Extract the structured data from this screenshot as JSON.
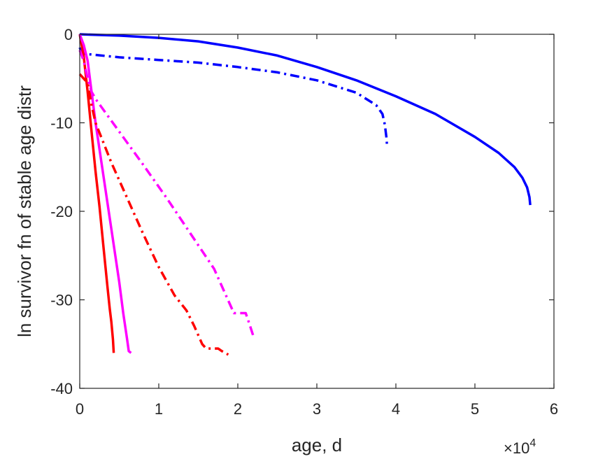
{
  "chart_data": {
    "type": "line",
    "xlabel": "age, d",
    "ylabel": "ln survivor fn of stable age distr",
    "x_multiplier_label": {
      "base": "×10",
      "exponent": "4"
    },
    "xlim": [
      0,
      6
    ],
    "ylim": [
      -40,
      0
    ],
    "xticks": [
      "0",
      "1",
      "2",
      "3",
      "4",
      "5",
      "6"
    ],
    "yticks": [
      "0",
      "-10",
      "-20",
      "-30",
      "-40"
    ],
    "grid": false,
    "series": [
      {
        "color": "#0000ff",
        "dash": "solid",
        "x": [
          0,
          0.5,
          1,
          1.5,
          2,
          2.5,
          3,
          3.5,
          4,
          4.5,
          5,
          5.3,
          5.5,
          5.6,
          5.66,
          5.69,
          5.7
        ],
        "y": [
          0,
          -0.15,
          -0.4,
          -0.8,
          -1.5,
          -2.4,
          -3.7,
          -5.2,
          -7.0,
          -9.0,
          -11.6,
          -13.4,
          -15.0,
          -16.2,
          -17.3,
          -18.4,
          -19.3
        ]
      },
      {
        "color": "#0000ff",
        "dash": "dashdot",
        "x": [
          0,
          0.02,
          0.05,
          0.5,
          1,
          1.5,
          2,
          2.5,
          3,
          3.5,
          3.75,
          3.83,
          3.86,
          3.88,
          3.89
        ],
        "y": [
          -1.5,
          -2.0,
          -2.2,
          -2.6,
          -2.9,
          -3.2,
          -3.7,
          -4.3,
          -5.2,
          -6.6,
          -8.0,
          -9.0,
          -10.2,
          -11.6,
          -12.8
        ]
      },
      {
        "color": "#ff0000",
        "dash": "solid",
        "x": [
          0,
          0.05,
          0.1,
          0.15,
          0.2,
          0.25,
          0.3,
          0.35,
          0.38,
          0.4,
          0.42,
          0.43
        ],
        "y": [
          0,
          -2.5,
          -6.5,
          -11,
          -15.5,
          -19.5,
          -24,
          -28.5,
          -31,
          -32.5,
          -34.5,
          -36
        ]
      },
      {
        "color": "#ff00ff",
        "dash": "solid",
        "x": [
          0,
          0.05,
          0.1,
          0.15,
          0.2,
          0.3,
          0.4,
          0.5,
          0.55,
          0.6,
          0.62,
          0.65
        ],
        "y": [
          0,
          -1.2,
          -3.0,
          -6.5,
          -10,
          -16,
          -22,
          -28,
          -31.5,
          -34.5,
          -35.8,
          -36
        ]
      },
      {
        "color": "#ff0000",
        "dash": "dashdot",
        "x": [
          0,
          0.05,
          0.1,
          0.15,
          0.2,
          0.4,
          0.6,
          0.8,
          1.0,
          1.2,
          1.35,
          1.45,
          1.55,
          1.6,
          1.7,
          1.75,
          1.8,
          1.88
        ],
        "y": [
          -4.5,
          -5.0,
          -5.5,
          -8.0,
          -10,
          -14.5,
          -18.5,
          -22.5,
          -26.3,
          -29.5,
          -31.2,
          -33,
          -35,
          -35.5,
          -35.5,
          -35.5,
          -35.8,
          -36.2
        ]
      },
      {
        "color": "#ff00ff",
        "dash": "dashdot",
        "x": [
          0,
          0.05,
          0.1,
          0.15,
          0.2,
          0.5,
          0.8,
          1.1,
          1.4,
          1.7,
          1.95,
          2.1,
          2.15,
          2.2
        ],
        "y": [
          -1.8,
          -3.0,
          -5.0,
          -6.5,
          -7.3,
          -11,
          -14.7,
          -18.5,
          -22.5,
          -26.5,
          -31.5,
          -31.5,
          -32.8,
          -34.2
        ]
      }
    ]
  }
}
